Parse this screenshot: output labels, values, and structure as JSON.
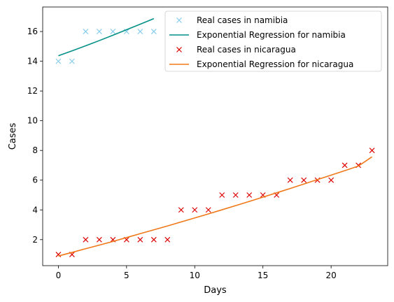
{
  "chart_data": {
    "type": "scatter",
    "xlabel": "Days",
    "ylabel": "Cases",
    "xlim": [
      -1.15,
      24.15
    ],
    "ylim": [
      0.25,
      17.65
    ],
    "x_ticks": [
      0,
      5,
      10,
      15,
      20
    ],
    "y_ticks": [
      2,
      4,
      6,
      8,
      10,
      12,
      14,
      16
    ],
    "grid": false,
    "legend_position": "top-right",
    "series": [
      {
        "name": "Real cases in namibia",
        "kind": "marker",
        "marker": "x",
        "color": "#87ceeb",
        "x": [
          0,
          1,
          2,
          3,
          4,
          5,
          6,
          7
        ],
        "y": [
          14,
          14,
          16,
          16,
          16,
          16,
          16,
          16
        ]
      },
      {
        "name": "Exponential Regression for namibia",
        "kind": "line",
        "color": "#009087",
        "x": [
          0,
          1,
          2,
          3,
          4,
          5,
          6,
          7
        ],
        "y": [
          14.37,
          14.7,
          15.04,
          15.39,
          15.75,
          16.12,
          16.49,
          16.87
        ]
      },
      {
        "name": "Real cases in nicaragua",
        "kind": "marker",
        "marker": "x",
        "color": "#dd0000",
        "x": [
          0,
          1,
          2,
          3,
          4,
          5,
          6,
          7,
          8,
          9,
          10,
          11,
          12,
          13,
          14,
          15,
          16,
          17,
          18,
          19,
          20,
          21,
          22,
          23
        ],
        "y": [
          1,
          1,
          2,
          2,
          2,
          2,
          2,
          2,
          2,
          4,
          4,
          4,
          5,
          5,
          5,
          5,
          5,
          6,
          6,
          6,
          6,
          7,
          7,
          8
        ]
      },
      {
        "name": "Exponential Regression for nicaragua",
        "kind": "line",
        "color": "#f07818",
        "x": [
          0,
          1,
          2,
          3,
          4,
          5,
          6,
          7,
          8,
          9,
          10,
          11,
          12,
          13,
          14,
          15,
          16,
          17,
          18,
          19,
          20,
          21,
          22,
          23
        ],
        "y": [
          0.9,
          1.14,
          1.39,
          1.63,
          1.88,
          2.14,
          2.4,
          2.66,
          2.92,
          3.19,
          3.46,
          3.73,
          4.01,
          4.29,
          4.57,
          4.86,
          5.15,
          5.44,
          5.74,
          6.04,
          6.34,
          6.64,
          6.95,
          7.57
        ]
      }
    ]
  }
}
